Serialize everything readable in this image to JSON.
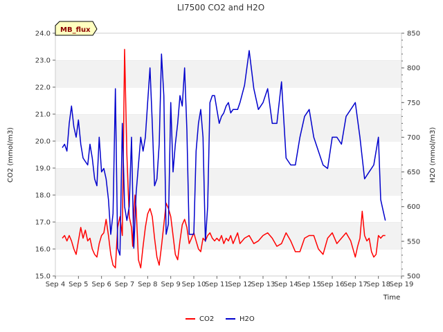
{
  "chart_data": {
    "type": "line",
    "title": "LI7500 CO2 and H2O",
    "xlabel": "Time",
    "ylabel_left": "CO2 (mmol/m3)",
    "ylabel_right": "H2O (mmol/m3)",
    "badge": "MB_flux",
    "xlim": [
      4,
      19
    ],
    "ylim_left": [
      15.0,
      24.0
    ],
    "ylim_right": [
      500,
      850
    ],
    "x_ticks": [
      4,
      5,
      6,
      7,
      8,
      9,
      10,
      11,
      12,
      13,
      14,
      15,
      16,
      17,
      18,
      19
    ],
    "x_tick_labels": [
      "Sep 4",
      "Sep 5",
      "Sep 6",
      "Sep 7",
      "Sep 8",
      "Sep 9",
      "Sep 10",
      "Sep 11",
      "Sep 12",
      "Sep 13",
      "Sep 14",
      "Sep 15",
      "Sep 16",
      "Sep 17",
      "Sep 18",
      "Sep 19"
    ],
    "y_left_ticks": [
      15.0,
      16.0,
      17.0,
      18.0,
      19.0,
      20.0,
      21.0,
      22.0,
      23.0,
      24.0
    ],
    "y_left_tick_labels": [
      "15.0",
      "16.0",
      "17.0",
      "18.0",
      "19.0",
      "20.0",
      "21.0",
      "22.0",
      "23.0",
      "24.0"
    ],
    "y_right_ticks": [
      500,
      550,
      600,
      650,
      700,
      750,
      800,
      850
    ],
    "y_right_tick_labels": [
      "500",
      "550",
      "600",
      "650",
      "700",
      "750",
      "800",
      "850"
    ],
    "grid": "horizontal bands",
    "legend_position": "bottom-center",
    "series": [
      {
        "name": "CO2",
        "axis": "left",
        "color": "#ff0000",
        "x": [
          4.3,
          4.4,
          4.5,
          4.6,
          4.7,
          4.8,
          4.9,
          5.0,
          5.1,
          5.2,
          5.3,
          5.4,
          5.5,
          5.6,
          5.7,
          5.8,
          5.9,
          6.0,
          6.1,
          6.2,
          6.3,
          6.4,
          6.5,
          6.6,
          6.7,
          6.8,
          6.9,
          7.0,
          7.1,
          7.2,
          7.3,
          7.35,
          7.4,
          7.45,
          7.5,
          7.55,
          7.6,
          7.7,
          7.8,
          7.9,
          8.0,
          8.1,
          8.2,
          8.3,
          8.4,
          8.5,
          8.6,
          8.7,
          8.8,
          8.9,
          9.0,
          9.1,
          9.2,
          9.3,
          9.4,
          9.5,
          9.6,
          9.7,
          9.8,
          9.9,
          10.0,
          10.1,
          10.2,
          10.3,
          10.4,
          10.5,
          10.6,
          10.7,
          10.8,
          10.9,
          11.0,
          11.1,
          11.2,
          11.3,
          11.4,
          11.5,
          11.6,
          11.7,
          11.8,
          11.9,
          12.0,
          12.2,
          12.4,
          12.6,
          12.8,
          13.0,
          13.2,
          13.4,
          13.6,
          13.8,
          14.0,
          14.2,
          14.4,
          14.6,
          14.8,
          15.0,
          15.2,
          15.4,
          15.6,
          15.8,
          16.0,
          16.2,
          16.4,
          16.6,
          16.8,
          17.0,
          17.1,
          17.2,
          17.3,
          17.4,
          17.5,
          17.6,
          17.7,
          17.8,
          17.9,
          18.0,
          18.1,
          18.2,
          18.3
        ],
        "values": [
          16.4,
          16.5,
          16.3,
          16.5,
          16.3,
          16.0,
          15.8,
          16.3,
          16.8,
          16.4,
          16.7,
          16.3,
          16.4,
          16.0,
          15.8,
          15.7,
          16.2,
          16.5,
          16.6,
          17.1,
          16.5,
          15.8,
          15.4,
          15.3,
          16.8,
          17.2,
          16.5,
          23.4,
          19.5,
          17.2,
          16.8,
          16.1,
          17.3,
          18.0,
          17.5,
          16.6,
          15.6,
          15.3,
          16.1,
          16.8,
          17.3,
          17.5,
          17.2,
          16.4,
          15.7,
          15.4,
          16.1,
          16.9,
          17.7,
          17.5,
          17.2,
          16.5,
          15.8,
          15.6,
          16.3,
          16.9,
          17.1,
          16.8,
          16.2,
          16.4,
          16.6,
          16.3,
          16.0,
          15.9,
          16.4,
          16.3,
          16.5,
          16.6,
          16.4,
          16.3,
          16.4,
          16.3,
          16.5,
          16.2,
          16.4,
          16.3,
          16.5,
          16.2,
          16.4,
          16.6,
          16.2,
          16.4,
          16.5,
          16.2,
          16.3,
          16.5,
          16.6,
          16.4,
          16.1,
          16.2,
          16.6,
          16.3,
          15.9,
          15.9,
          16.4,
          16.5,
          16.5,
          16.0,
          15.8,
          16.4,
          16.6,
          16.2,
          16.4,
          16.6,
          16.3,
          15.7,
          16.1,
          16.4,
          17.4,
          16.5,
          16.3,
          16.4,
          15.9,
          15.7,
          15.8,
          16.5,
          16.4,
          16.5,
          16.5
        ]
      },
      {
        "name": "H2O",
        "axis": "right",
        "color": "#0000cc",
        "x": [
          4.3,
          4.4,
          4.5,
          4.6,
          4.7,
          4.8,
          4.9,
          5.0,
          5.1,
          5.2,
          5.3,
          5.4,
          5.5,
          5.6,
          5.7,
          5.8,
          5.9,
          6.0,
          6.1,
          6.2,
          6.3,
          6.4,
          6.5,
          6.6,
          6.7,
          6.8,
          6.9,
          7.0,
          7.1,
          7.2,
          7.3,
          7.4,
          7.5,
          7.6,
          7.7,
          7.8,
          7.9,
          8.0,
          8.1,
          8.2,
          8.3,
          8.4,
          8.5,
          8.6,
          8.7,
          8.8,
          8.9,
          9.0,
          9.1,
          9.2,
          9.3,
          9.4,
          9.5,
          9.6,
          9.7,
          9.8,
          9.9,
          10.0,
          10.1,
          10.2,
          10.3,
          10.4,
          10.5,
          10.6,
          10.7,
          10.8,
          10.9,
          11.0,
          11.1,
          11.2,
          11.3,
          11.4,
          11.5,
          11.6,
          11.7,
          11.8,
          11.9,
          12.0,
          12.2,
          12.4,
          12.6,
          12.8,
          13.0,
          13.2,
          13.4,
          13.6,
          13.8,
          14.0,
          14.2,
          14.4,
          14.6,
          14.8,
          15.0,
          15.2,
          15.4,
          15.6,
          15.8,
          16.0,
          16.2,
          16.4,
          16.6,
          16.8,
          17.0,
          17.2,
          17.4,
          17.6,
          17.8,
          18.0,
          18.1,
          18.2,
          18.3
        ],
        "values": [
          685,
          690,
          680,
          720,
          745,
          715,
          700,
          725,
          690,
          670,
          665,
          660,
          690,
          670,
          640,
          630,
          700,
          650,
          655,
          640,
          610,
          560,
          590,
          770,
          540,
          530,
          720,
          600,
          580,
          600,
          700,
          540,
          620,
          660,
          700,
          680,
          700,
          750,
          800,
          720,
          630,
          640,
          690,
          820,
          760,
          560,
          575,
          750,
          650,
          690,
          720,
          760,
          745,
          800,
          710,
          560,
          560,
          560,
          680,
          720,
          740,
          700,
          550,
          600,
          750,
          760,
          760,
          740,
          720,
          730,
          735,
          745,
          750,
          735,
          740,
          740,
          740,
          750,
          775,
          825,
          770,
          740,
          750,
          770,
          720,
          720,
          780,
          670,
          660,
          660,
          700,
          730,
          740,
          700,
          680,
          660,
          655,
          700,
          700,
          690,
          730,
          740,
          750,
          700,
          640,
          650,
          660,
          700,
          610,
          595,
          580
        ]
      }
    ]
  },
  "legend": {
    "items": [
      "CO2",
      "H2O"
    ]
  }
}
